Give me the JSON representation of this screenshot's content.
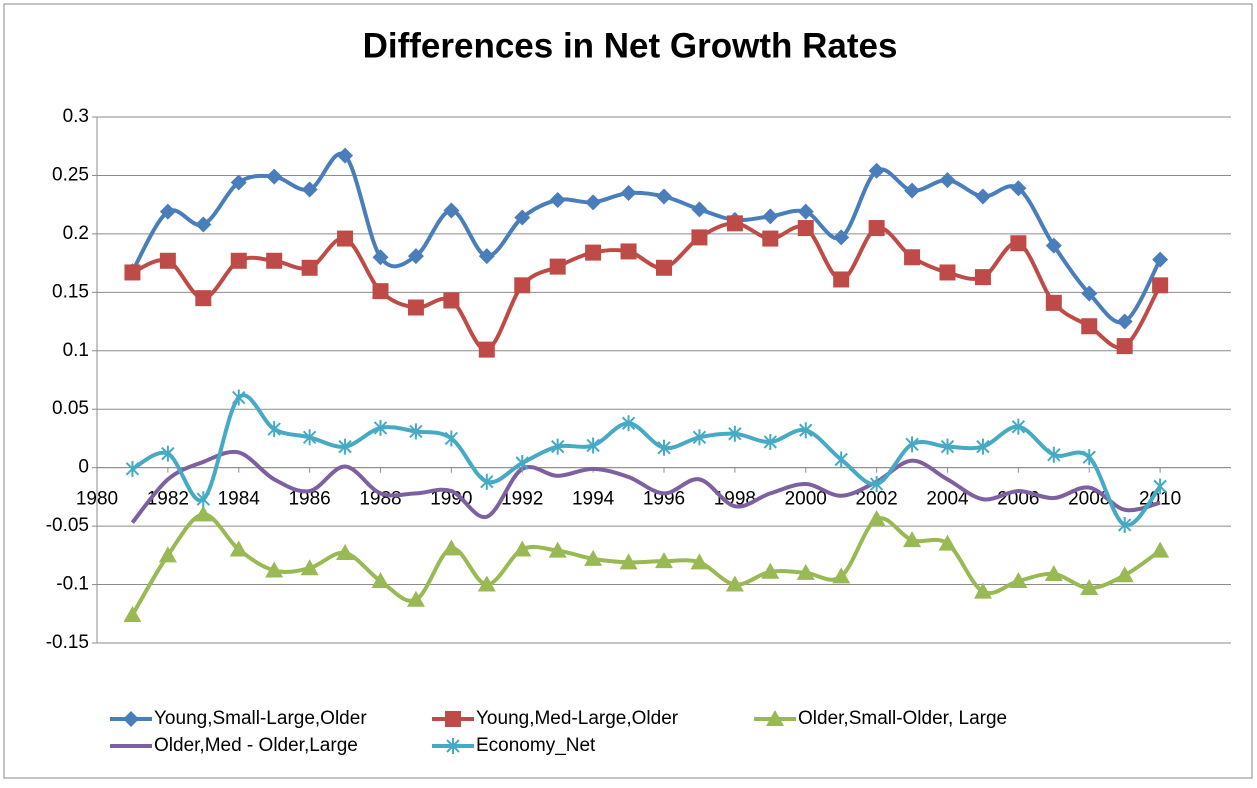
{
  "chart_data": {
    "type": "line",
    "title": "Differences in Net Growth Rates",
    "x": [
      1981,
      1982,
      1983,
      1984,
      1985,
      1986,
      1987,
      1988,
      1989,
      1990,
      1991,
      1992,
      1993,
      1994,
      1995,
      1996,
      1997,
      1998,
      1999,
      2000,
      2001,
      2002,
      2003,
      2004,
      2005,
      2006,
      2007,
      2008,
      2009,
      2010
    ],
    "xlim": [
      1980,
      2012
    ],
    "xticks": [
      1980,
      1982,
      1984,
      1986,
      1988,
      1990,
      1992,
      1994,
      1996,
      1998,
      2000,
      2002,
      2004,
      2006,
      2008,
      2010
    ],
    "ylim": [
      -0.15,
      0.3
    ],
    "yticks": [
      -0.15,
      -0.1,
      -0.05,
      0,
      0.05,
      0.1,
      0.15,
      0.2,
      0.25,
      0.3
    ],
    "grid": true,
    "smooth": true,
    "legend": "bottom",
    "series": [
      {
        "name": "Young,Small-Large,Older",
        "color": "#4a7ebb",
        "marker": "diamond",
        "values": [
          0.168,
          0.219,
          0.208,
          0.244,
          0.249,
          0.238,
          0.267,
          0.18,
          0.181,
          0.22,
          0.181,
          0.214,
          0.229,
          0.227,
          0.235,
          0.232,
          0.221,
          0.212,
          0.215,
          0.219,
          0.197,
          0.254,
          0.237,
          0.246,
          0.232,
          0.239,
          0.19,
          0.149,
          0.125,
          0.178
        ]
      },
      {
        "name": "Young,Med-Large,Older",
        "color": "#be4b48",
        "marker": "square",
        "values": [
          0.167,
          0.177,
          0.145,
          0.177,
          0.177,
          0.171,
          0.196,
          0.151,
          0.137,
          0.143,
          0.101,
          0.156,
          0.172,
          0.184,
          0.185,
          0.171,
          0.197,
          0.209,
          0.196,
          0.205,
          0.161,
          0.205,
          0.18,
          0.167,
          0.163,
          0.192,
          0.141,
          0.121,
          0.104,
          0.156
        ]
      },
      {
        "name": "Older,Small-Older, Large",
        "color": "#98b954",
        "marker": "triangle",
        "values": [
          -0.126,
          -0.075,
          -0.04,
          -0.07,
          -0.088,
          -0.086,
          -0.073,
          -0.097,
          -0.113,
          -0.069,
          -0.1,
          -0.07,
          -0.071,
          -0.078,
          -0.081,
          -0.08,
          -0.081,
          -0.1,
          -0.089,
          -0.09,
          -0.093,
          -0.044,
          -0.062,
          -0.065,
          -0.106,
          -0.097,
          -0.091,
          -0.103,
          -0.092,
          -0.071
        ]
      },
      {
        "name": "Older,Med - Older,Large",
        "color": "#7d60a0",
        "marker": "none",
        "values": [
          -0.047,
          -0.01,
          0.005,
          0.013,
          -0.01,
          -0.02,
          0.001,
          -0.022,
          -0.022,
          -0.02,
          -0.042,
          -0.001,
          -0.007,
          -0.001,
          -0.008,
          -0.022,
          -0.01,
          -0.033,
          -0.022,
          -0.014,
          -0.024,
          -0.012,
          0.006,
          -0.01,
          -0.027,
          -0.02,
          -0.026,
          -0.017,
          -0.036,
          -0.03
        ]
      },
      {
        "name": "Economy_Net",
        "color": "#46aac5",
        "marker": "star",
        "values": [
          -0.001,
          0.012,
          -0.027,
          0.06,
          0.033,
          0.026,
          0.018,
          0.034,
          0.031,
          0.025,
          -0.012,
          0.004,
          0.018,
          0.019,
          0.038,
          0.017,
          0.026,
          0.029,
          0.022,
          0.032,
          0.007,
          -0.014,
          0.02,
          0.018,
          0.018,
          0.035,
          0.011,
          0.009,
          -0.049,
          -0.016
        ]
      }
    ]
  }
}
